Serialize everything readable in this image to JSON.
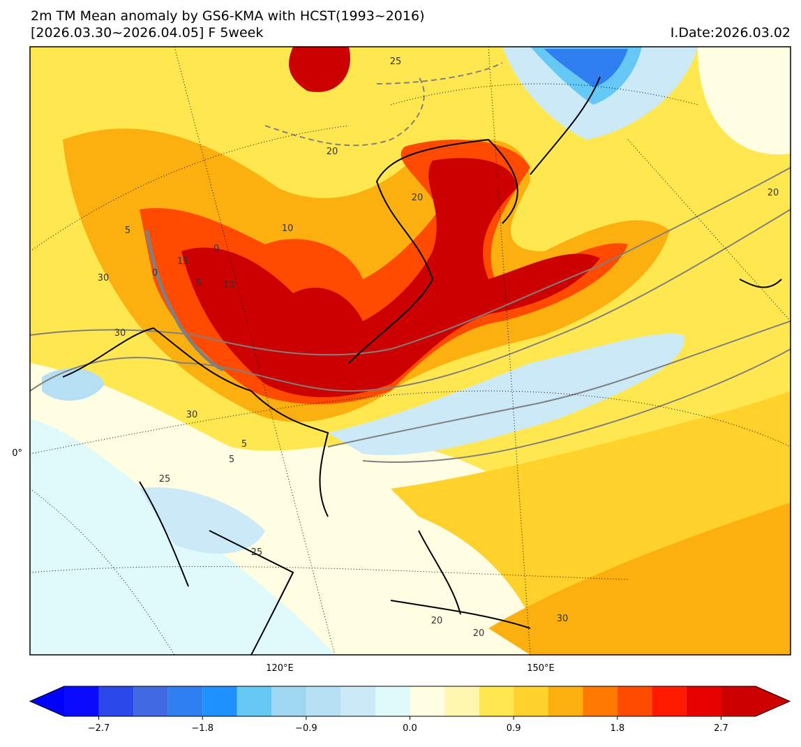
{
  "header": {
    "title": "2m TM Mean anomaly by GS6-KMA with HCST(1993~2016)",
    "subtitle": "[2026.03.30~2026.04.05] F 5week",
    "init_date": "I.Date:2026.03.02"
  },
  "map": {
    "lon_labels": [
      "120°E",
      "150°E"
    ],
    "lat_labels": [
      "0°"
    ],
    "contour_labels": [
      "25",
      "20",
      "20",
      "20",
      "10",
      "0",
      "15",
      "5",
      "10",
      "5",
      "30",
      "30",
      "0",
      "5",
      "30",
      "5",
      "25",
      "25",
      "20",
      "20",
      "30"
    ]
  },
  "colorbar": {
    "bounds": [
      -3.0,
      -2.7,
      -2.4,
      -2.1,
      -1.8,
      -1.5,
      -1.2,
      -0.9,
      -0.6,
      -0.3,
      0.0,
      0.3,
      0.6,
      0.9,
      1.2,
      1.5,
      1.8,
      2.1,
      2.4,
      2.7,
      3.0
    ],
    "colors": [
      "#0a0aff",
      "#2a48e8",
      "#4169e1",
      "#2f7ff0",
      "#1e90ff",
      "#66c8f5",
      "#9fd6f0",
      "#b5e0f4",
      "#cbe9f7",
      "#e0fafc",
      "#fffee2",
      "#fff7b0",
      "#ffe84f",
      "#ffd12a",
      "#fbb010",
      "#ff7800",
      "#ff4a00",
      "#ff1a00",
      "#e60000",
      "#cc0000"
    ],
    "under_color": "#0000ff",
    "over_color": "#cc0000",
    "ticks": [
      {
        "value": -2.7,
        "label": "−2.7"
      },
      {
        "value": -1.8,
        "label": "−1.8"
      },
      {
        "value": -0.9,
        "label": "−0.9"
      },
      {
        "value": 0,
        "label": "0.0"
      },
      0.9,
      1.8,
      2.7
    ]
  }
}
